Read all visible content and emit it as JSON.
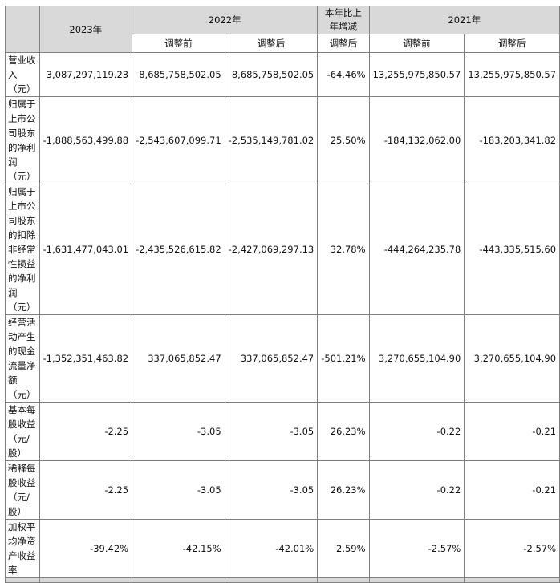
{
  "header": {
    "col_2023": "2023年",
    "col_2022": "2022年",
    "col_change": "本年比上年增减",
    "col_2021": "2021年",
    "sub_before": "调整前",
    "sub_after": "调整后",
    "sub_change_after": "调整后",
    "sub_2021_before": "调整前",
    "sub_2021_after": "调整后"
  },
  "rows": [
    {
      "label": "营业收入（元）",
      "v2023": "3,087,297,119.23",
      "v2022_before": "8,685,758,502.05",
      "v2022_after": "8,685,758,502.05",
      "change": "-64.46%",
      "v2021_before": "13,255,975,850.57",
      "v2021_after": "13,255,975,850.57"
    },
    {
      "label": "归属于上市公司股东的净利润（元）",
      "v2023": "-1,888,563,499.88",
      "v2022_before": "-2,543,607,099.71",
      "v2022_after": "-2,535,149,781.02",
      "change": "25.50%",
      "v2021_before": "-184,132,062.00",
      "v2021_after": "-183,203,341.82"
    },
    {
      "label": "归属于上市公司股东的扣除非经常性损益的净利润（元）",
      "v2023": "-1,631,477,043.01",
      "v2022_before": "-2,435,526,615.82",
      "v2022_after": "-2,427,069,297.13",
      "change": "32.78%",
      "v2021_before": "-444,264,235.78",
      "v2021_after": "-443,335,515.60"
    },
    {
      "label": "经营活动产生的现金流量净额（元）",
      "v2023": "-1,352,351,463.82",
      "v2022_before": "337,065,852.47",
      "v2022_after": "337,065,852.47",
      "change": "-501.21%",
      "v2021_before": "3,270,655,104.90",
      "v2021_after": "3,270,655,104.90"
    },
    {
      "label": "基本每股收益（元/股）",
      "v2023": "-2.25",
      "v2022_before": "-3.05",
      "v2022_after": "-3.05",
      "change": "26.23%",
      "v2021_before": "-0.22",
      "v2021_after": "-0.21"
    },
    {
      "label": "稀释每股收益（元/股）",
      "v2023": "-2.25",
      "v2022_before": "-3.05",
      "v2022_after": "-3.05",
      "change": "26.23%",
      "v2021_before": "-0.22",
      "v2021_after": "-0.21"
    },
    {
      "label": "加权平均净资产收益率",
      "v2023": "-39.42%",
      "v2022_before": "-42.15%",
      "v2022_after": "-42.01%",
      "change": "2.59%",
      "v2021_before": "-2.57%",
      "v2021_after": "-2.57%"
    }
  ]
}
